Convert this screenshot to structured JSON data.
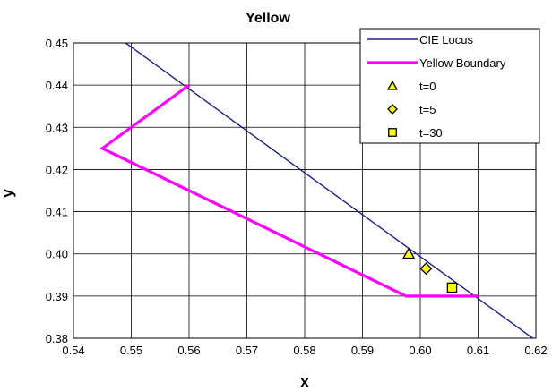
{
  "chart_data": {
    "type": "scatter",
    "title": "Yellow",
    "xlabel": "x",
    "ylabel": "y",
    "xlim": [
      0.54,
      0.62
    ],
    "ylim": [
      0.38,
      0.45
    ],
    "x_ticks": [
      "0.54",
      "0.55",
      "0.56",
      "0.57",
      "0.58",
      "0.59",
      "0.60",
      "0.61",
      "0.62"
    ],
    "y_ticks": [
      "0.38",
      "0.39",
      "0.40",
      "0.41",
      "0.42",
      "0.43",
      "0.44",
      "0.45"
    ],
    "grid": true,
    "legend_position": "top-right",
    "series": [
      {
        "name": "CIE Locus",
        "kind": "line",
        "color": "#1a237e",
        "points": [
          [
            0.5455,
            0.4535
          ],
          [
            0.624,
            0.3755
          ]
        ]
      },
      {
        "name": "Yellow Boundary",
        "kind": "line",
        "color": "#ff00ff",
        "points": [
          [
            0.56,
            0.44
          ],
          [
            0.545,
            0.425
          ],
          [
            0.5975,
            0.39
          ],
          [
            0.61,
            0.39
          ]
        ]
      },
      {
        "name": "t=0",
        "kind": "marker",
        "marker": "triangle",
        "color": "#ffff00",
        "points": [
          [
            0.598,
            0.4
          ]
        ]
      },
      {
        "name": "t=5",
        "kind": "marker",
        "marker": "diamond",
        "color": "#ffff00",
        "points": [
          [
            0.601,
            0.3965
          ]
        ]
      },
      {
        "name": "t=30",
        "kind": "marker",
        "marker": "square",
        "color": "#ffff00",
        "points": [
          [
            0.6055,
            0.392
          ]
        ]
      }
    ]
  }
}
